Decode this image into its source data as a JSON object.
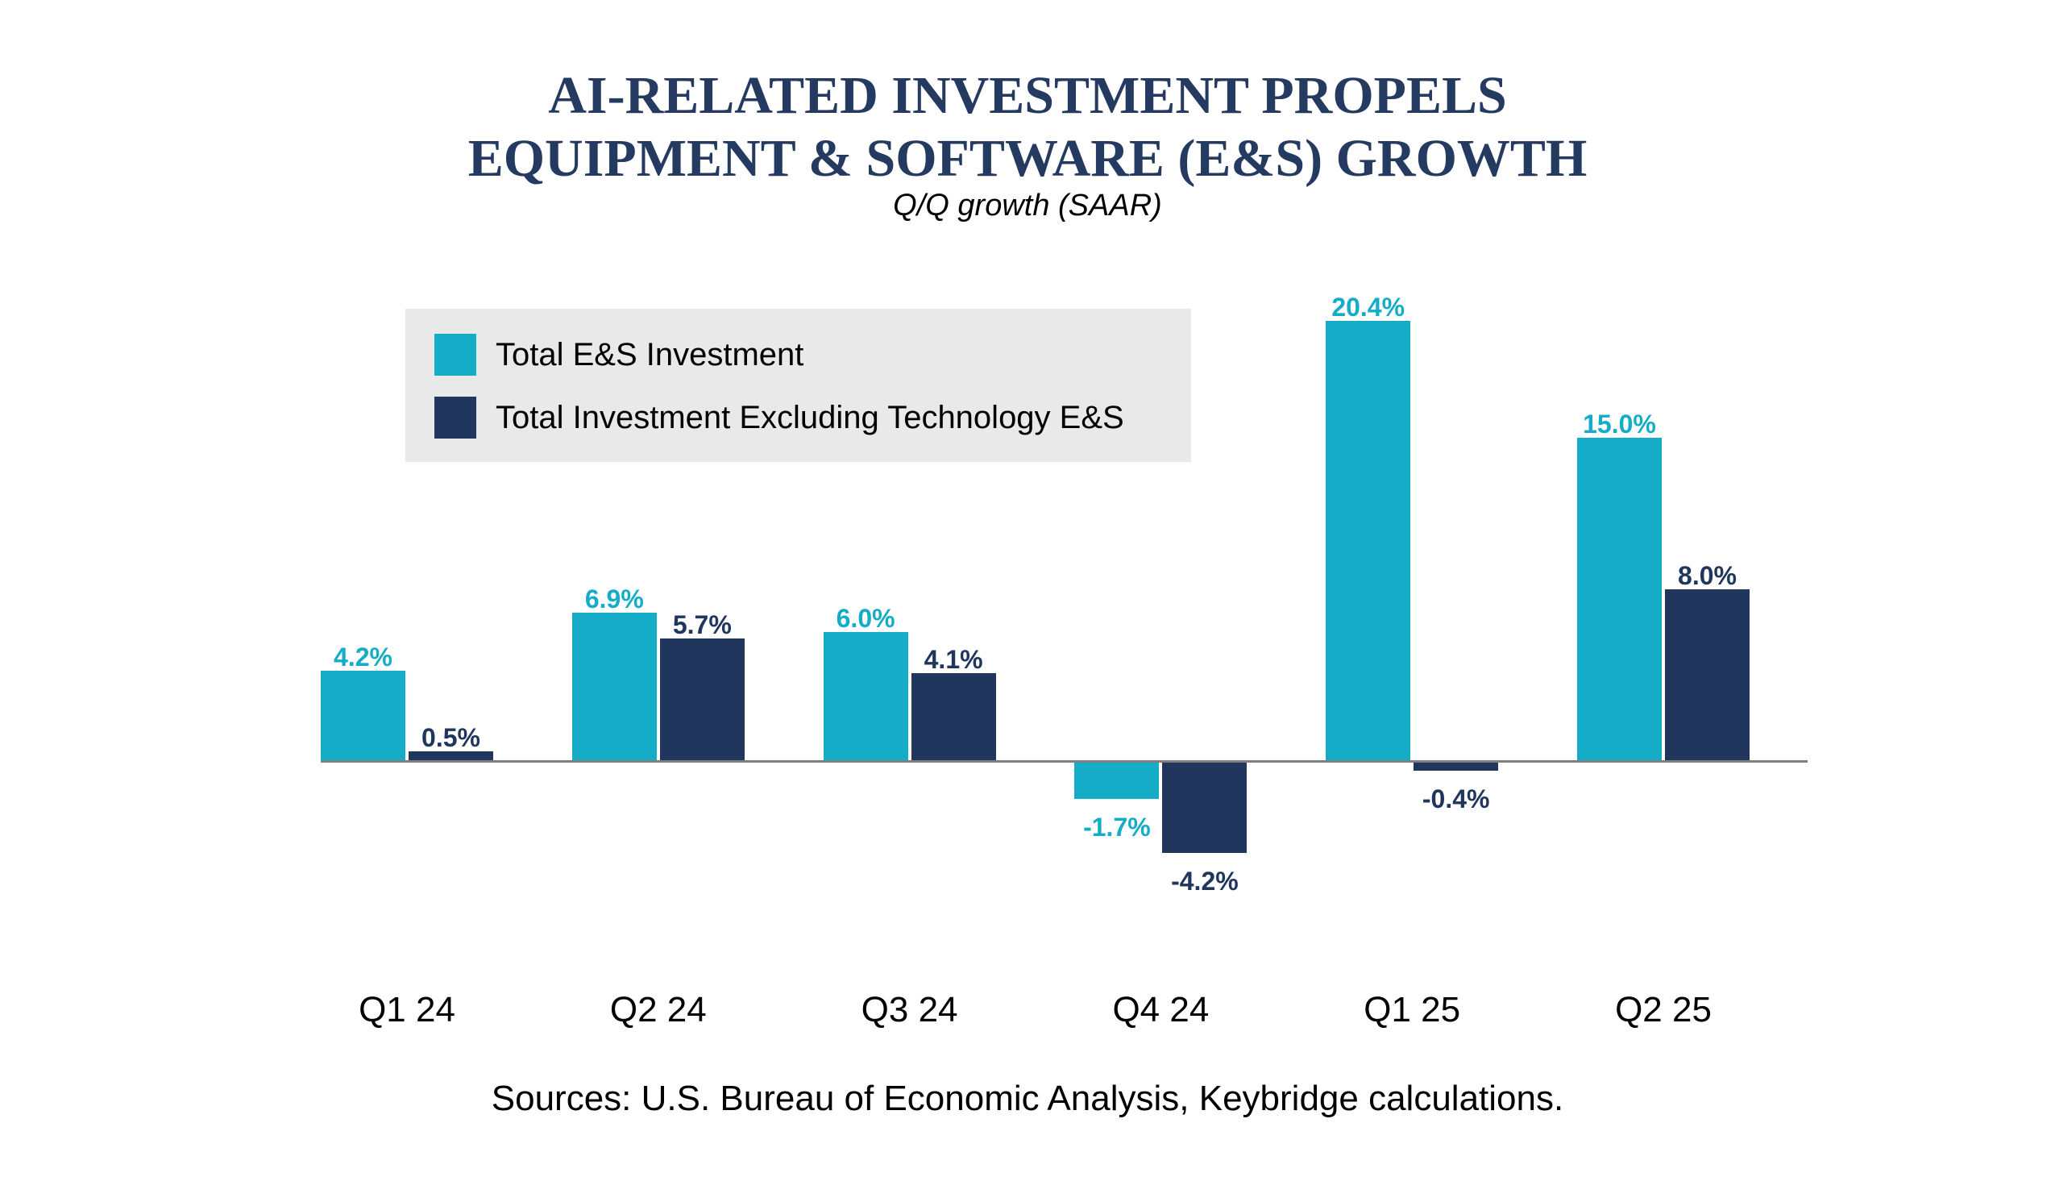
{
  "header": {
    "title_line1": "AI-RELATED INVESTMENT PROPELS",
    "title_line2": "EQUIPMENT & SOFTWARE (E&S) GROWTH",
    "subtitle": "Q/Q growth (SAAR)"
  },
  "legend": {
    "items": [
      {
        "label": "Total E&S Investment",
        "color": "#14ACC7"
      },
      {
        "label": "Total Investment Excluding Technology E&S",
        "color": "#20365C"
      }
    ]
  },
  "chart_data": {
    "type": "bar",
    "categories": [
      "Q1 24",
      "Q2 24",
      "Q3 24",
      "Q4 24",
      "Q1 25",
      "Q2 25"
    ],
    "series": [
      {
        "name": "Total E&S Investment",
        "color": "#14ACC7",
        "values": [
          4.2,
          6.9,
          6.0,
          -1.7,
          20.4,
          15.0
        ],
        "labels": [
          "4.2%",
          "6.9%",
          "6.0%",
          "-1.7%",
          "20.4%",
          "15.0%"
        ]
      },
      {
        "name": "Total Investment Excluding Technology E&S",
        "color": "#20365C",
        "values": [
          0.5,
          5.7,
          4.1,
          -4.2,
          -0.4,
          8.0
        ],
        "labels": [
          "0.5%",
          "5.7%",
          "4.1%",
          "-4.2%",
          "-0.4%",
          "8.0%"
        ]
      }
    ],
    "title": "AI-RELATED INVESTMENT PROPELS EQUIPMENT & SOFTWARE (E&S) GROWTH",
    "subtitle": "Q/Q growth (SAAR)",
    "xlabel": "",
    "ylabel": "",
    "ylim": [
      -6,
      22
    ],
    "grid": false,
    "y_axis_visible": false,
    "baseline": 0,
    "legend_position": "upper-left"
  },
  "source": "Sources: U.S. Bureau of Economic Analysis, Keybridge calculations.",
  "colors": {
    "title": "#253A60",
    "teal": "#14ACC7",
    "navy": "#20365C",
    "legend_bg": "#E9E9EA",
    "axis": "#7F7F7F",
    "background": "#FFFFFF"
  }
}
